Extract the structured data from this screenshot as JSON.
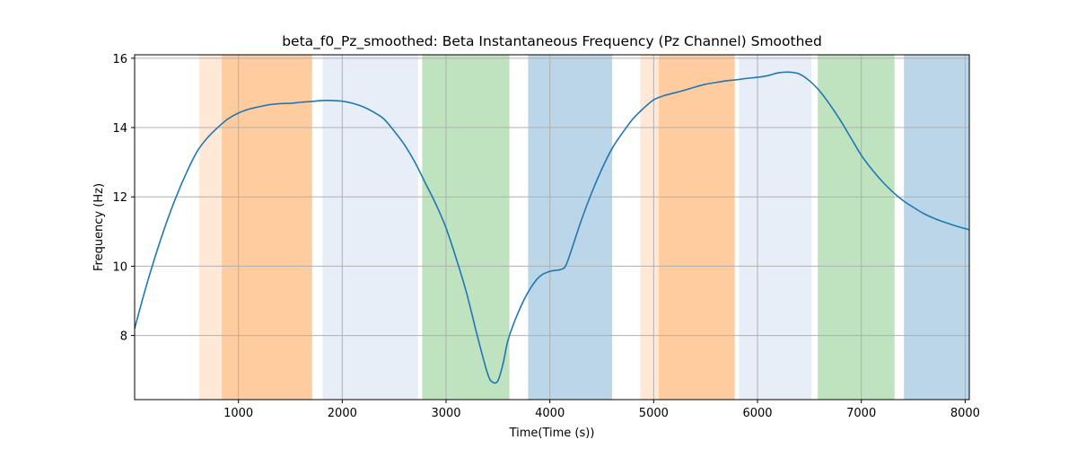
{
  "chart_data": {
    "type": "line",
    "title": "beta_f0_Pz_smoothed: Beta Instantaneous Frequency (Pz Channel) Smoothed",
    "xlabel": "Time(Time (s))",
    "ylabel": "Frequency (Hz)",
    "xlim": [
      0,
      8040
    ],
    "ylim": [
      6.15,
      16.1
    ],
    "xticks": [
      1000,
      2000,
      3000,
      4000,
      5000,
      6000,
      7000,
      8000
    ],
    "yticks": [
      8,
      10,
      12,
      14,
      16
    ],
    "grid": true,
    "line_color": "#1f77b4",
    "bands": [
      {
        "x0": 620,
        "x1": 1710,
        "color": "#ff7f0e",
        "opacity": 0.17
      },
      {
        "x0": 840,
        "x1": 1710,
        "color": "#ff7f0e",
        "opacity": 0.27
      },
      {
        "x0": 1810,
        "x1": 2730,
        "color": "#aec7e8",
        "opacity": 0.3
      },
      {
        "x0": 2770,
        "x1": 3610,
        "color": "#2ca02c",
        "opacity": 0.3
      },
      {
        "x0": 3790,
        "x1": 4600,
        "color": "#1f77b4",
        "opacity": 0.3
      },
      {
        "x0": 4870,
        "x1": 5780,
        "color": "#ff7f0e",
        "opacity": 0.17
      },
      {
        "x0": 5050,
        "x1": 5780,
        "color": "#ff7f0e",
        "opacity": 0.27
      },
      {
        "x0": 5820,
        "x1": 6520,
        "color": "#aec7e8",
        "opacity": 0.3
      },
      {
        "x0": 6580,
        "x1": 7320,
        "color": "#2ca02c",
        "opacity": 0.3
      },
      {
        "x0": 7410,
        "x1": 8040,
        "color": "#1f77b4",
        "opacity": 0.3
      }
    ],
    "series": [
      {
        "x": [
          0,
          100,
          200,
          300,
          400,
          500,
          600,
          700,
          800,
          900,
          1000,
          1100,
          1200,
          1300,
          1400,
          1500,
          1600,
          1700,
          1800,
          1900,
          2000,
          2100,
          2200,
          2300,
          2400,
          2500,
          2600,
          2700,
          2800,
          2900,
          3000,
          3100,
          3200,
          3300,
          3400,
          3450,
          3500,
          3550,
          3600,
          3700,
          3800,
          3900,
          4000,
          4100,
          4150,
          4200,
          4300,
          4400,
          4500,
          4600,
          4700,
          4800,
          4900,
          5000,
          5100,
          5200,
          5300,
          5400,
          5500,
          5600,
          5700,
          5800,
          5900,
          6000,
          6100,
          6200,
          6300,
          6400,
          6500,
          6600,
          6700,
          6800,
          6900,
          7000,
          7100,
          7200,
          7300,
          7400,
          7500,
          7600,
          7700,
          7800,
          7900,
          8040
        ],
        "y": [
          8.2,
          9.3,
          10.3,
          11.2,
          12.0,
          12.7,
          13.3,
          13.7,
          14.0,
          14.25,
          14.42,
          14.53,
          14.6,
          14.66,
          14.69,
          14.7,
          14.73,
          14.75,
          14.78,
          14.78,
          14.76,
          14.7,
          14.6,
          14.45,
          14.25,
          13.9,
          13.5,
          13.0,
          12.4,
          11.8,
          11.1,
          10.2,
          9.2,
          8.0,
          6.9,
          6.65,
          6.7,
          7.2,
          7.9,
          8.7,
          9.3,
          9.7,
          9.85,
          9.9,
          10.0,
          10.4,
          11.3,
          12.1,
          12.8,
          13.4,
          13.85,
          14.25,
          14.55,
          14.8,
          14.92,
          15.0,
          15.08,
          15.17,
          15.25,
          15.3,
          15.35,
          15.38,
          15.42,
          15.45,
          15.5,
          15.58,
          15.6,
          15.55,
          15.35,
          15.05,
          14.65,
          14.2,
          13.7,
          13.2,
          12.8,
          12.45,
          12.15,
          11.9,
          11.7,
          11.52,
          11.38,
          11.27,
          11.17,
          11.05
        ]
      }
    ]
  }
}
